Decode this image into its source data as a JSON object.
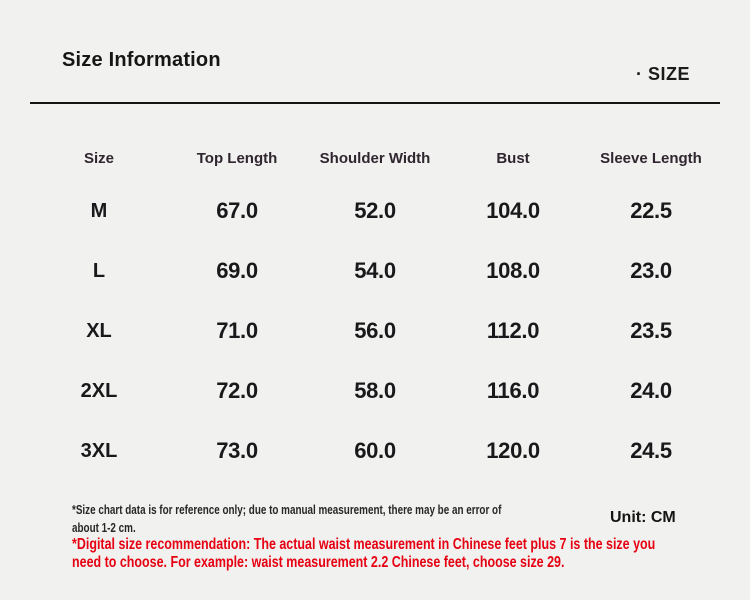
{
  "colors": {
    "background": "#f1f1ef",
    "text": "#1a1a1a",
    "divider": "#151515",
    "warning_red": "#e60012"
  },
  "header": {
    "title": "Size Information",
    "section_label": "· SIZE"
  },
  "table": {
    "columns": [
      "Size",
      "Top Length",
      "Shoulder Width",
      "Bust",
      "Sleeve Length"
    ],
    "rows": [
      {
        "size": "M",
        "values": [
          "67.0",
          "52.0",
          "104.0",
          "22.5"
        ]
      },
      {
        "size": "L",
        "values": [
          "69.0",
          "54.0",
          "108.0",
          "23.0"
        ]
      },
      {
        "size": "XL",
        "values": [
          "71.0",
          "56.0",
          "112.0",
          "23.5"
        ]
      },
      {
        "size": "2XL",
        "values": [
          "72.0",
          "58.0",
          "116.0",
          "24.0"
        ]
      },
      {
        "size": "3XL",
        "values": [
          "73.0",
          "60.0",
          "120.0",
          "24.5"
        ]
      }
    ],
    "unit_label": "Unit: CM"
  },
  "footnotes": {
    "measurement_note_line1": "*Size chart data is for reference only; due to manual measurement, there may be an error of",
    "measurement_note_line2": "about 1-2 cm.",
    "recommendation_line1": "*Digital size recommendation: The actual waist measurement in Chinese feet plus 7 is the size you",
    "recommendation_line2": "need to choose. For example: waist measurement 2.2 Chinese feet, choose size 29."
  }
}
